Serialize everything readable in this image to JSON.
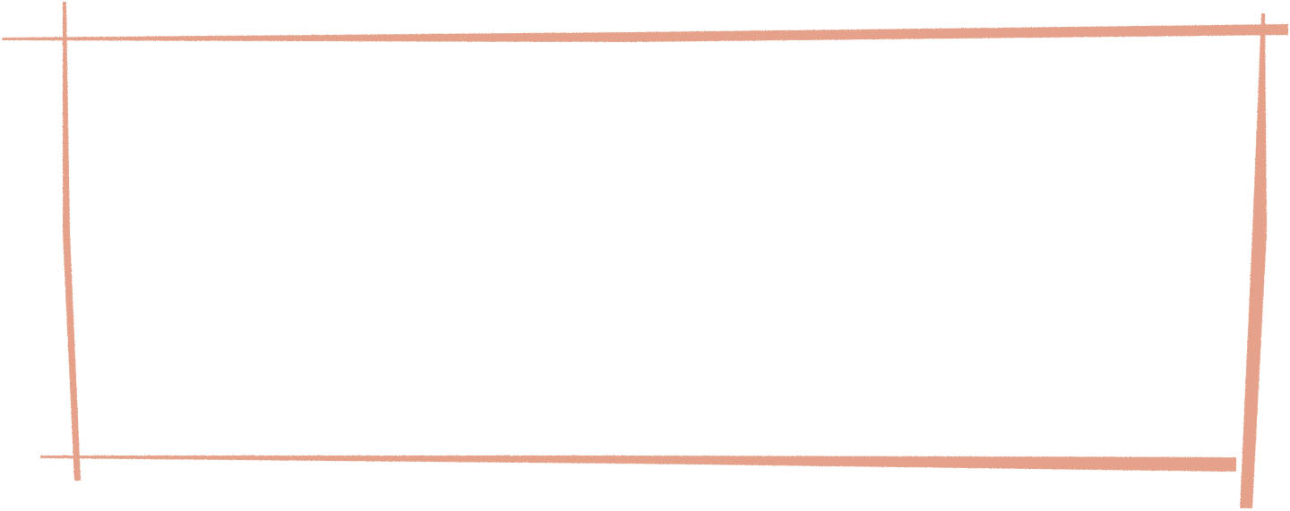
{
  "frame": {
    "style": "hand-drawn crayon rectangle",
    "stroke_color": "#E39A80"
  }
}
